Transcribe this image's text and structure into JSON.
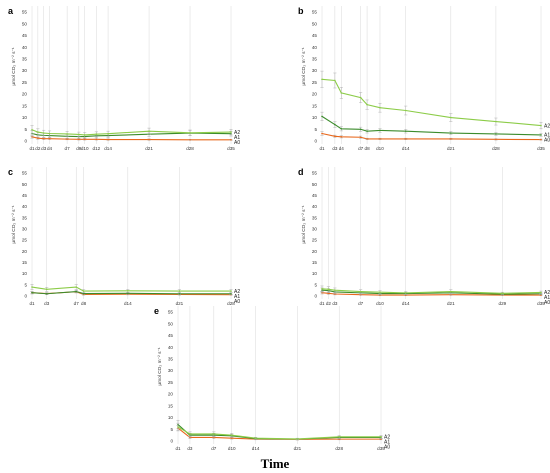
{
  "figure": {
    "x_title": "Time",
    "y_label": "µmol CO₂ m⁻² s⁻¹"
  },
  "colors": {
    "A0": "#e8681c",
    "A1": "#3c8c2c",
    "A2": "#8ccc48",
    "grid": "#d8d8d8",
    "error": "#aaaaaa"
  },
  "chart_data": [
    {
      "type": "line",
      "panel": "a",
      "ylim": [
        0,
        55
      ],
      "yticks": [
        0,
        5,
        10,
        15,
        20,
        25,
        30,
        35,
        40,
        45,
        50,
        55
      ],
      "x": [
        1,
        2,
        3,
        4,
        7,
        9,
        10,
        12,
        14,
        21,
        28,
        35
      ],
      "xticks": [
        1,
        2,
        3,
        4,
        7,
        9,
        10,
        12,
        14,
        21,
        28,
        35
      ],
      "xtick_labels": [
        "d1",
        "d2",
        "d3",
        "d4",
        "d7",
        "d9",
        "d10",
        "d12",
        "d14",
        "d21",
        "d28",
        "d35"
      ],
      "series": [
        {
          "name": "A0",
          "values": [
            1.8,
            1.2,
            1.0,
            1.0,
            0.8,
            0.7,
            0.7,
            0.7,
            0.6,
            0.6,
            0.5,
            0.5
          ],
          "errors": [
            0.6,
            0.5,
            0.4,
            0.4,
            0.3,
            0.3,
            0.3,
            0.3,
            0.3,
            0.3,
            0.2,
            0.2
          ]
        },
        {
          "name": "A1",
          "values": [
            3.2,
            2.6,
            2.4,
            2.3,
            2.0,
            1.9,
            1.9,
            2.2,
            2.3,
            2.9,
            3.4,
            3.1
          ],
          "errors": [
            1.2,
            1.0,
            0.9,
            0.8,
            0.8,
            0.7,
            0.7,
            0.8,
            0.9,
            1.0,
            1.1,
            1.0
          ]
        },
        {
          "name": "A2",
          "values": [
            4.8,
            3.8,
            3.4,
            3.2,
            3.0,
            2.8,
            2.6,
            2.9,
            3.1,
            4.2,
            3.5,
            3.8
          ],
          "errors": [
            1.8,
            1.4,
            1.2,
            1.1,
            1.1,
            1.0,
            1.0,
            1.0,
            1.1,
            1.3,
            1.2,
            1.2
          ]
        }
      ]
    },
    {
      "type": "line",
      "panel": "b",
      "ylim": [
        0,
        55
      ],
      "yticks": [
        0,
        5,
        10,
        15,
        20,
        25,
        30,
        35,
        40,
        45,
        50,
        55
      ],
      "x": [
        1,
        3,
        4,
        7,
        8,
        10,
        14,
        21,
        28,
        35
      ],
      "xticks": [
        1,
        3,
        4,
        7,
        8,
        10,
        14,
        21,
        28,
        35
      ],
      "xtick_labels": [
        "d1",
        "d3",
        "d4",
        "d7",
        "d8",
        "d10",
        "d14",
        "d21",
        "d28",
        "d35"
      ],
      "series": [
        {
          "name": "A0",
          "values": [
            3.2,
            2.0,
            1.8,
            1.6,
            0.9,
            0.9,
            0.9,
            0.9,
            0.7,
            0.6
          ],
          "errors": [
            0.8,
            0.5,
            0.5,
            0.5,
            0.3,
            0.3,
            0.3,
            0.3,
            0.3,
            0.2
          ]
        },
        {
          "name": "A1",
          "values": [
            10.5,
            7.0,
            5.2,
            5.0,
            4.2,
            4.5,
            4.2,
            3.4,
            3.0,
            2.6
          ],
          "errors": [
            1.8,
            1.2,
            0.9,
            0.9,
            0.8,
            0.8,
            0.8,
            0.7,
            0.6,
            0.6
          ]
        },
        {
          "name": "A2",
          "values": [
            26.3,
            25.8,
            20.5,
            18.5,
            15.5,
            14.2,
            13.0,
            10.0,
            8.3,
            6.6
          ],
          "errors": [
            3.5,
            3.2,
            2.4,
            2.2,
            2.0,
            1.9,
            1.9,
            1.7,
            1.5,
            1.4
          ]
        }
      ]
    },
    {
      "type": "line",
      "panel": "c",
      "ylim": [
        0,
        55
      ],
      "yticks": [
        0,
        5,
        10,
        15,
        20,
        25,
        30,
        35,
        40,
        45,
        50,
        55
      ],
      "x": [
        1,
        3,
        7,
        8,
        14,
        21,
        28
      ],
      "xticks": [
        1,
        3,
        7,
        8,
        14,
        21,
        28
      ],
      "xtick_labels": [
        "d1",
        "d3",
        "d7",
        "d8",
        "d14",
        "d21",
        "d28"
      ],
      "series": [
        {
          "name": "A0",
          "values": [
            1.5,
            1.1,
            1.9,
            0.7,
            0.8,
            0.7,
            0.6
          ],
          "errors": [
            0.5,
            0.4,
            0.5,
            0.3,
            0.3,
            0.3,
            0.2
          ]
        },
        {
          "name": "A1",
          "values": [
            1.5,
            1.0,
            2.0,
            1.1,
            1.2,
            1.0,
            1.0
          ],
          "errors": [
            0.6,
            0.4,
            0.6,
            0.4,
            0.4,
            0.4,
            0.4
          ]
        },
        {
          "name": "A2",
          "values": [
            4.0,
            3.0,
            4.0,
            2.2,
            2.3,
            2.2,
            2.2
          ],
          "errors": [
            1.2,
            0.9,
            1.1,
            0.7,
            0.7,
            0.7,
            0.7
          ]
        }
      ]
    },
    {
      "type": "line",
      "panel": "d",
      "ylim": [
        0,
        55
      ],
      "yticks": [
        0,
        5,
        10,
        15,
        20,
        25,
        30,
        35,
        40,
        45,
        50,
        55
      ],
      "x": [
        1,
        2,
        3,
        7,
        10,
        14,
        21,
        29,
        35
      ],
      "xticks": [
        1,
        2,
        3,
        7,
        10,
        14,
        21,
        29,
        35
      ],
      "xtick_labels": [
        "d1",
        "d2",
        "d3",
        "d7",
        "d10",
        "d14",
        "d21",
        "d29",
        "d35"
      ],
      "series": [
        {
          "name": "A0",
          "values": [
            1.5,
            1.2,
            0.9,
            0.6,
            0.4,
            0.4,
            0.6,
            0.4,
            0.4
          ],
          "errors": [
            0.6,
            0.5,
            0.4,
            0.3,
            0.2,
            0.2,
            0.3,
            0.2,
            0.2
          ]
        },
        {
          "name": "A1",
          "values": [
            2.6,
            2.4,
            1.8,
            1.4,
            1.1,
            1.1,
            1.4,
            0.8,
            1.0
          ],
          "errors": [
            1.0,
            0.9,
            0.7,
            0.6,
            0.5,
            0.5,
            0.6,
            0.4,
            0.4
          ]
        },
        {
          "name": "A2",
          "values": [
            3.2,
            3.0,
            2.6,
            2.0,
            1.7,
            1.4,
            2.0,
            1.2,
            1.6
          ],
          "errors": [
            1.3,
            1.2,
            1.0,
            0.8,
            0.7,
            0.6,
            0.8,
            0.5,
            0.6
          ]
        }
      ]
    },
    {
      "type": "line",
      "panel": "e",
      "ylim": [
        0,
        55
      ],
      "yticks": [
        0,
        5,
        10,
        15,
        20,
        25,
        30,
        35,
        40,
        45,
        50,
        55
      ],
      "x": [
        1,
        3,
        7,
        10,
        14,
        21,
        28,
        35
      ],
      "xticks": [
        1,
        3,
        7,
        10,
        14,
        21,
        28,
        35
      ],
      "xtick_labels": [
        "d1",
        "d3",
        "d7",
        "d10",
        "d14",
        "d21",
        "d28",
        "d35"
      ],
      "series": [
        {
          "name": "A0",
          "values": [
            5.5,
            1.5,
            1.5,
            1.2,
            0.8,
            0.7,
            0.8,
            0.8
          ],
          "errors": [
            1.2,
            0.5,
            0.5,
            0.4,
            0.3,
            0.3,
            0.3,
            0.3
          ]
        },
        {
          "name": "A1",
          "values": [
            7.0,
            2.5,
            2.5,
            2.2,
            1.0,
            0.8,
            1.5,
            1.5
          ],
          "errors": [
            1.8,
            0.8,
            0.8,
            0.7,
            0.4,
            0.3,
            0.5,
            0.5
          ]
        },
        {
          "name": "A2",
          "values": [
            6.0,
            3.0,
            3.0,
            2.5,
            1.2,
            0.9,
            1.8,
            1.8
          ],
          "errors": [
            1.6,
            0.9,
            0.9,
            0.8,
            0.4,
            0.3,
            0.6,
            0.6
          ]
        }
      ]
    }
  ]
}
